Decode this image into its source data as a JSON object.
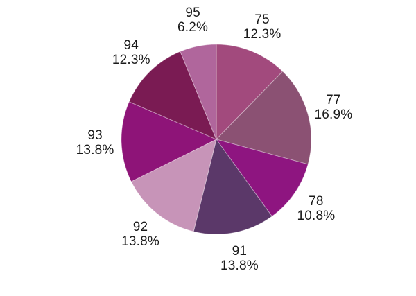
{
  "chart_data": {
    "type": "pie",
    "title": "",
    "xlabel": "",
    "ylabel": "",
    "legend_position": "none",
    "labels_outside": true,
    "start_angle_deg": 0,
    "direction": "clockwise",
    "background_color": "#FFFFFF",
    "label_text_color": "#1A1A1A",
    "separator_color": "#FFFFFF",
    "slices": [
      {
        "label": "75",
        "percent_label": "12.3%",
        "value": 12.3,
        "color": "#A24A7D"
      },
      {
        "label": "77",
        "percent_label": "16.9%",
        "value": 16.9,
        "color": "#8B5173"
      },
      {
        "label": "78",
        "percent_label": "10.8%",
        "value": 10.8,
        "color": "#8E1580"
      },
      {
        "label": "91",
        "percent_label": "13.8%",
        "value": 13.8,
        "color": "#5B3869"
      },
      {
        "label": "92",
        "percent_label": "13.8%",
        "value": 13.8,
        "color": "#C794B8"
      },
      {
        "label": "93",
        "percent_label": "13.8%",
        "value": 13.8,
        "color": "#8E1478"
      },
      {
        "label": "94",
        "percent_label": "12.3%",
        "value": 12.3,
        "color": "#7A1B53"
      },
      {
        "label": "95",
        "percent_label": "6.2%",
        "value": 6.2,
        "color": "#B0669C"
      }
    ]
  }
}
